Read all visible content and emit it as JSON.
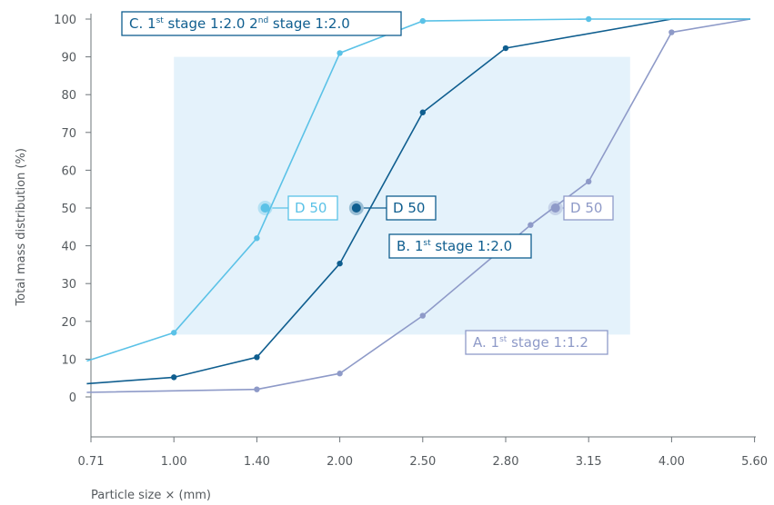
{
  "chart_data": {
    "type": "line",
    "title": "",
    "xlabel": "Particle size × (mm)",
    "ylabel": "Total mass distribution (%)",
    "x_categories": [
      "0.71",
      "1.00",
      "1.40",
      "2.00",
      "2.50",
      "2.80",
      "3.15",
      "4.00",
      "5.60"
    ],
    "y_ticks": [
      0,
      10,
      20,
      30,
      40,
      50,
      60,
      70,
      80,
      90,
      100
    ],
    "ylim": [
      -10,
      100
    ],
    "grid": false,
    "shaded_region": {
      "x": [
        1.0,
        6.5
      ],
      "y": [
        16.5,
        90
      ],
      "color": "#e4f2fb"
    },
    "series": [
      {
        "name": "A. 1st stage 1:1.2",
        "label": {
          "prefix": "A. 1",
          "sup": "st",
          "suffix": " stage 1:1.2"
        },
        "color": "#8e9ac8",
        "points": [
          [
            -0.05,
            1.2
          ],
          [
            2.0,
            2.0
          ],
          [
            3.0,
            6.2
          ],
          [
            4.0,
            21.5
          ],
          [
            5.3,
            45.5
          ],
          [
            6.0,
            57.0
          ],
          [
            7.0,
            96.5
          ],
          [
            7.95,
            100
          ]
        ],
        "markers": [
          [
            2.0,
            2.0
          ],
          [
            3.0,
            6.2
          ],
          [
            4.0,
            21.5
          ],
          [
            5.3,
            45.5
          ],
          [
            6.0,
            57.0
          ],
          [
            7.0,
            96.5
          ]
        ],
        "d50": {
          "x": 5.6,
          "y": 50,
          "label": "D 50"
        }
      },
      {
        "name": "B. 1st stage 1:2.0",
        "label": {
          "prefix": "B. 1",
          "sup": "st",
          "suffix": " stage 1:2.0"
        },
        "color": "#0f5e8f",
        "points": [
          [
            -0.05,
            3.5
          ],
          [
            1.0,
            5.2
          ],
          [
            2.0,
            10.5
          ],
          [
            3.0,
            35.3
          ],
          [
            4.0,
            75.3
          ],
          [
            5.0,
            92.3
          ],
          [
            7.0,
            100
          ],
          [
            7.95,
            100
          ]
        ],
        "markers": [
          [
            1.0,
            5.2
          ],
          [
            2.0,
            10.5
          ],
          [
            3.0,
            35.3
          ],
          [
            4.0,
            75.3
          ],
          [
            5.0,
            92.3
          ]
        ],
        "d50": {
          "x": 3.2,
          "y": 50,
          "label": "D 50"
        }
      },
      {
        "name": "C. 1st stage 1:2.0 2nd stage 1:2.0",
        "label": {
          "prefix": "C. 1",
          "sup": "st",
          "suffix": " stage 1:2.0    2",
          "sup2": "nd",
          "suffix2": " stage 1:2.0"
        },
        "color": "#5bc2e7",
        "points": [
          [
            -0.05,
            9.5
          ],
          [
            1.0,
            17.0
          ],
          [
            2.0,
            42.0
          ],
          [
            3.0,
            91.0
          ],
          [
            4.0,
            99.5
          ],
          [
            6.0,
            100
          ],
          [
            7.95,
            100
          ]
        ],
        "markers": [
          [
            1.0,
            17.0
          ],
          [
            2.0,
            42.0
          ],
          [
            3.0,
            91.0
          ],
          [
            4.0,
            99.5
          ],
          [
            6.0,
            100
          ]
        ],
        "d50": {
          "x": 2.1,
          "y": 50,
          "label": "D 50"
        }
      }
    ]
  }
}
